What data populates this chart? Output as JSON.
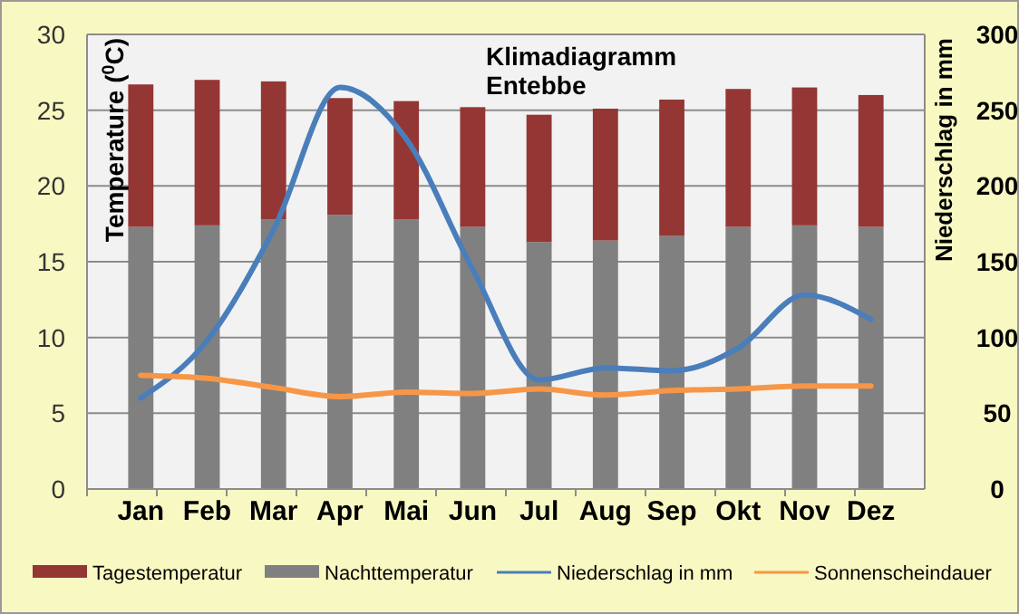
{
  "chart_data": {
    "type": "bar",
    "title": "Klimadiagramm\nEntebbe",
    "ylabel": "Temperature ($^{0}$C)",
    "y2label": "Niederschlag in mm",
    "categories": [
      "Jan",
      "Feb",
      "Mar",
      "Apr",
      "Mai",
      "Jun",
      "Jul",
      "Aug",
      "Sep",
      "Okt",
      "Nov",
      "Dez"
    ],
    "stacked": true,
    "series": [
      {
        "name": "Nachttemperatur",
        "color": "#808080",
        "values": [
          17.3,
          17.4,
          17.8,
          18.1,
          17.8,
          17.3,
          16.3,
          16.4,
          16.7,
          17.3,
          17.4,
          17.3
        ]
      },
      {
        "name": "Tagestemperatur",
        "color": "#943634",
        "values": [
          9.4,
          9.6,
          9.1,
          7.7,
          7.8,
          7.9,
          8.4,
          8.7,
          9.0,
          9.1,
          9.1,
          8.7
        ]
      },
      {
        "name": "Niederschlag in mm",
        "type": "line",
        "axis": "y2",
        "color": "#4a7ebb",
        "values": [
          60,
          98,
          171,
          265,
          231,
          145,
          72,
          80,
          78,
          93,
          128,
          112
        ]
      },
      {
        "name": "Sonnenscheindauer",
        "type": "line",
        "color": "#f79646",
        "values": [
          7.5,
          7.3,
          6.7,
          6.1,
          6.4,
          6.3,
          6.6,
          6.2,
          6.5,
          6.6,
          6.8,
          6.8
        ]
      }
    ],
    "ylim": [
      0,
      30
    ],
    "yticks": [
      0,
      5,
      10,
      15,
      20,
      25,
      30
    ],
    "y2lim": [
      0,
      300
    ],
    "y2ticks": [
      0,
      50,
      100,
      150,
      200,
      250,
      300
    ],
    "grid": "y",
    "legend": "bottom"
  }
}
